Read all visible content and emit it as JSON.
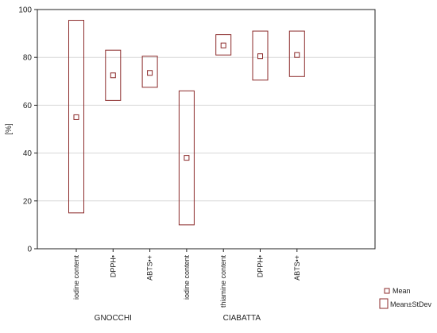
{
  "chart_data": {
    "type": "box",
    "ylabel": "[%]",
    "ylim": [
      0,
      100
    ],
    "yticks": [
      0,
      20,
      40,
      60,
      80,
      100
    ],
    "grid": true,
    "legend_position": "bottom-right",
    "colors": {
      "box": "#8b2a2a",
      "grid": "#d7d7d7",
      "axis": "#222222"
    },
    "categories": [
      "iodine content",
      "DPPH•",
      "ABTS•+",
      "iodine content",
      "thiamine content",
      "DPPH•",
      "ABTS•+"
    ],
    "groups": [
      {
        "label": "GNOCCHI",
        "start": 0,
        "end": 2
      },
      {
        "label": "CIABATTA",
        "start": 3,
        "end": 6
      }
    ],
    "series": [
      {
        "name": "Mean",
        "values": [
          55,
          72.5,
          73.5,
          38,
          85,
          80.5,
          81
        ]
      },
      {
        "name": "Mean±StDev",
        "low": [
          15,
          62,
          67.5,
          10,
          81,
          70.5,
          72
        ],
        "high": [
          95.5,
          83,
          80.5,
          66,
          89.5,
          91,
          91
        ]
      }
    ]
  }
}
